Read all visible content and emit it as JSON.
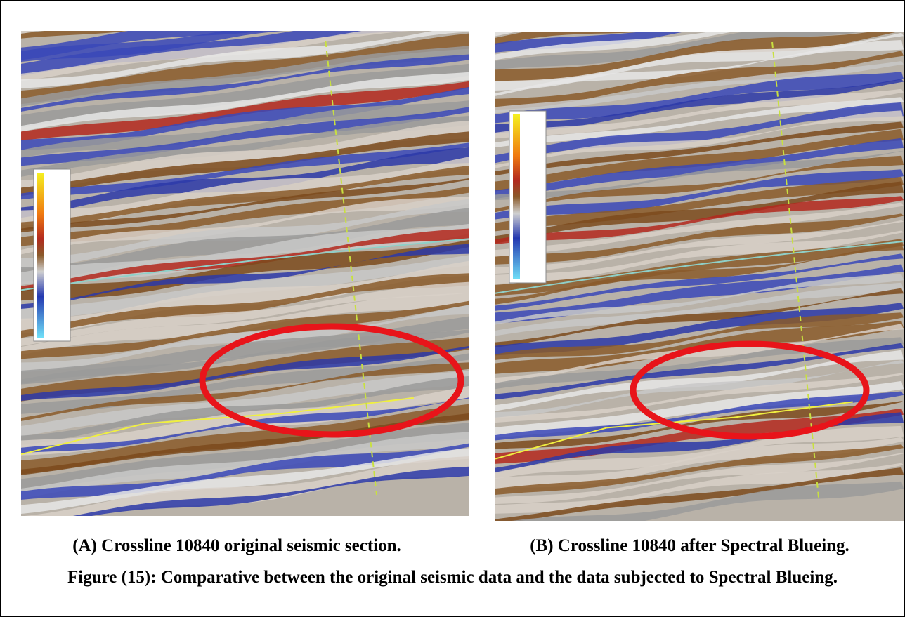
{
  "panels": [
    {
      "caption": "(A) Crossline 10840 original seismic section."
    },
    {
      "caption": "(B) Crossline 10840 after Spectral Blueing."
    }
  ],
  "figure_caption": "Figure (15): Comparative between the original seismic data and the data subjected to Spectral Blueing."
}
